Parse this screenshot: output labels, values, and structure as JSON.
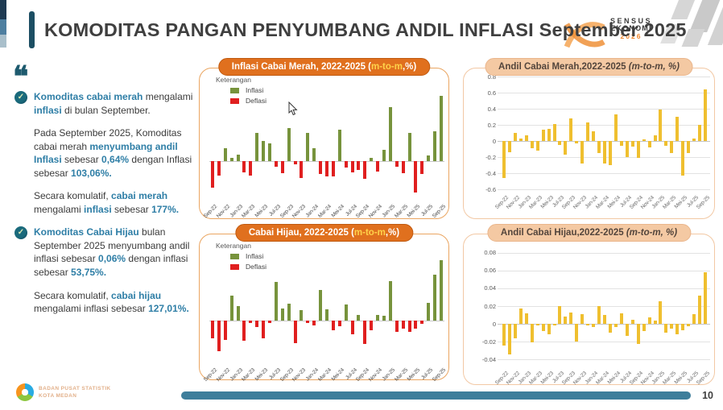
{
  "header": {
    "title": "KOMODITAS PANGAN PENYUMBANG ANDIL INFLASI September 2025",
    "sensus": {
      "line1": "SENSUS",
      "line2": "EKONOMI",
      "year": "2026"
    }
  },
  "sidebar": {
    "quote_mark": "❝",
    "paragraphs": [
      {
        "bullet": true,
        "runs": [
          {
            "text": "Komoditas cabai merah",
            "highlight": true
          },
          {
            "text": " mengalami ",
            "highlight": false
          },
          {
            "text": "inflasi",
            "highlight": true
          },
          {
            "text": " di bulan September.",
            "highlight": false
          }
        ]
      },
      {
        "bullet": false,
        "runs": [
          {
            "text": "Pada September 2025, Komoditas cabai merah ",
            "highlight": false
          },
          {
            "text": "menyumbang andil Inflasi",
            "highlight": true
          },
          {
            "text": " sebesar ",
            "highlight": false
          },
          {
            "text": "0,64%",
            "highlight": true
          },
          {
            "text": " dengan Inflasi sebesar ",
            "highlight": false
          },
          {
            "text": "103,06%.",
            "highlight": true
          }
        ]
      },
      {
        "bullet": false,
        "runs": [
          {
            "text": "Secara komulatif, ",
            "highlight": false
          },
          {
            "text": "cabai merah",
            "highlight": true
          },
          {
            "text": " mengalami ",
            "highlight": false
          },
          {
            "text": "inflasi",
            "highlight": true
          },
          {
            "text": " sebesar ",
            "highlight": false
          },
          {
            "text": "177%.",
            "highlight": true
          }
        ]
      },
      {
        "bullet": true,
        "runs": [
          {
            "text": "Komoditas Cabai Hijau",
            "highlight": true
          },
          {
            "text": " bulan September 2025 menyumbang andil inflasi sebesar ",
            "highlight": false
          },
          {
            "text": "0,06%",
            "highlight": true
          },
          {
            "text": " dengan inflasi sebesar ",
            "highlight": false
          },
          {
            "text": "53,75%.",
            "highlight": true
          }
        ]
      },
      {
        "bullet": false,
        "runs": [
          {
            "text": "Secara komulatif, ",
            "highlight": false
          },
          {
            "text": "cabai hijau",
            "highlight": true
          },
          {
            "text": " mengalami inflasi sebesar ",
            "highlight": false
          },
          {
            "text": "127,01%.",
            "highlight": true
          }
        ]
      }
    ]
  },
  "panels": [
    {
      "style": "dark",
      "header": {
        "pre": "Inflasi Cabai Merah, 2022-2025 (",
        "accent": "m-to-m",
        "post": ",%)"
      },
      "legend": {
        "title": "Keterangan",
        "items": [
          {
            "label": "Inflasi"
          },
          {
            "label": "Deflasi"
          }
        ]
      }
    },
    {
      "style": "light",
      "header": {
        "main": "Andil Cabai Merah,2022-2025 ",
        "italic": "(m-to-m, %)"
      }
    },
    {
      "style": "dark",
      "header": {
        "pre": "Cabai Hijau, 2022-2025 (",
        "accent": "m-to-m",
        "post": ",%)"
      },
      "legend": {
        "title": "Keterangan",
        "items": [
          {
            "label": "Inflasi"
          },
          {
            "label": "Deflasi"
          }
        ]
      }
    },
    {
      "style": "light",
      "header": {
        "main": "Andil Cabai Hijau,2022-2025 ",
        "italic": "(m-to-m, %)"
      }
    }
  ],
  "chart_data": {
    "categories": [
      "Sep-22",
      "Okt-22",
      "Nov-22",
      "Des-22",
      "Jan-23",
      "Feb-23",
      "Mar-23",
      "Apr-23",
      "Mei-23",
      "Jun-23",
      "Jul-23",
      "Agu-23",
      "Sep-23",
      "Okt-23",
      "Nov-23",
      "Des-23",
      "Jan-24",
      "Feb-24",
      "Mar-24",
      "Apr-24",
      "Mei-24",
      "Jun-24",
      "Jul-24",
      "Agu-24",
      "Sep-24",
      "Okt-24",
      "Nov-24",
      "Des-24",
      "Jan-25",
      "Feb-25",
      "Mar-25",
      "Apr-25",
      "Mei-25",
      "Jun-25",
      "Jul-25",
      "Agu-25",
      "Sep-25"
    ],
    "xtick_step": 2,
    "charts": [
      {
        "type": "bar",
        "title": "Inflasi Cabai Merah, 2022-2025 (m-to-m,%)",
        "legend": [
          "Inflasi",
          "Deflasi"
        ],
        "legend_position": "top-left",
        "grid": false,
        "ylim": [
          -60,
          110
        ],
        "yticks": [],
        "ytick_labels": [],
        "color_pos": "#77933c",
        "color_neg": "#e01f1f",
        "values": [
          -41,
          -22,
          21,
          6,
          10,
          -17,
          -22,
          44,
          32,
          28,
          -9,
          -18,
          52,
          -4,
          -26,
          45,
          20,
          -20,
          -23,
          -24,
          50,
          -10,
          -17,
          -13,
          -27,
          6,
          -16,
          18,
          85,
          -9,
          -19,
          45,
          -49,
          -20,
          9,
          47,
          103.06
        ]
      },
      {
        "type": "bar",
        "title": "Andil Cabai Merah,2022-2025 (m-to-m, %)",
        "legend": [],
        "legend_position": "none",
        "grid": true,
        "ylim": [
          -0.62,
          0.82
        ],
        "yticks": [
          0.8,
          0.6,
          0.4,
          0.2,
          0,
          -0.2,
          -0.4,
          -0.6
        ],
        "ytick_labels": [
          "0.8",
          "0.6",
          "0.4",
          "0.2",
          "0",
          "-0.2",
          "-0.4",
          "-0.6"
        ],
        "color_pos": "#efbf2f",
        "color_neg": "#efbf2f",
        "values": [
          -0.46,
          -0.14,
          0.1,
          0.03,
          0.07,
          -0.09,
          -0.12,
          0.14,
          0.15,
          0.21,
          -0.05,
          -0.17,
          0.28,
          -0.03,
          -0.28,
          0.23,
          0.12,
          -0.15,
          -0.28,
          -0.3,
          0.33,
          -0.06,
          -0.2,
          -0.07,
          -0.21,
          0.02,
          -0.08,
          0.07,
          0.39,
          -0.06,
          -0.15,
          0.3,
          -0.43,
          -0.15,
          0.03,
          0.2,
          0.64
        ]
      },
      {
        "type": "bar",
        "title": "Cabai Hijau, 2022-2025 (m-to-m,%)",
        "legend": [
          "Inflasi",
          "Deflasi"
        ],
        "legend_position": "top-left",
        "grid": false,
        "ylim": [
          -38,
          55
        ],
        "yticks": [],
        "ytick_labels": [],
        "color_pos": "#77933c",
        "color_neg": "#e01f1f",
        "values": [
          -16,
          -27,
          -17,
          22,
          13,
          -18,
          -2.5,
          -6,
          -16,
          -2,
          34,
          11,
          15,
          -20,
          9,
          -2,
          -4.5,
          27,
          10,
          -9,
          -5,
          14,
          -12,
          5,
          -21,
          -9,
          5,
          4,
          35,
          -10,
          -7,
          -10,
          -7,
          -3,
          16,
          41,
          53.75
        ]
      },
      {
        "type": "bar",
        "title": "Andil Cabai Hijau,2022-2025 (m-to-m, %)",
        "legend": [],
        "legend_position": "none",
        "grid": true,
        "ylim": [
          -0.048,
          0.088
        ],
        "yticks": [
          0.08,
          0.06,
          0.04,
          0.02,
          0,
          -0.02,
          -0.04
        ],
        "ytick_labels": [
          "0.08",
          "0.06",
          "0.04",
          "0.02",
          "0",
          "-0.02",
          "-0.04"
        ],
        "color_pos": "#efbf2f",
        "color_neg": "#efbf2f",
        "values": [
          -0.024,
          -0.034,
          -0.016,
          0.017,
          0.012,
          -0.021,
          -0.002,
          -0.008,
          -0.012,
          -0.002,
          0.02,
          0.008,
          0.013,
          -0.02,
          0.011,
          -0.002,
          -0.004,
          0.02,
          0.01,
          -0.01,
          -0.004,
          0.012,
          -0.014,
          0.005,
          -0.023,
          -0.008,
          0.007,
          0.004,
          0.025,
          -0.01,
          -0.005,
          -0.012,
          -0.007,
          -0.003,
          0.011,
          0.032,
          0.058
        ]
      }
    ]
  },
  "footer": {
    "org_line1": "BADAN PUSAT STATISTIK",
    "org_line2": "KOTA MEDAN",
    "page_number": "10"
  },
  "colors": {
    "accent_orange": "#e0701e",
    "peach": "#f4c9a3",
    "inflasi_green": "#77933c",
    "deflasi_red": "#e01f1f",
    "andil_gold": "#efbf2f",
    "highlight_teal": "#2e7ea6",
    "title_gray": "#3f3f3f",
    "footer_teal": "#3e7e9b"
  }
}
